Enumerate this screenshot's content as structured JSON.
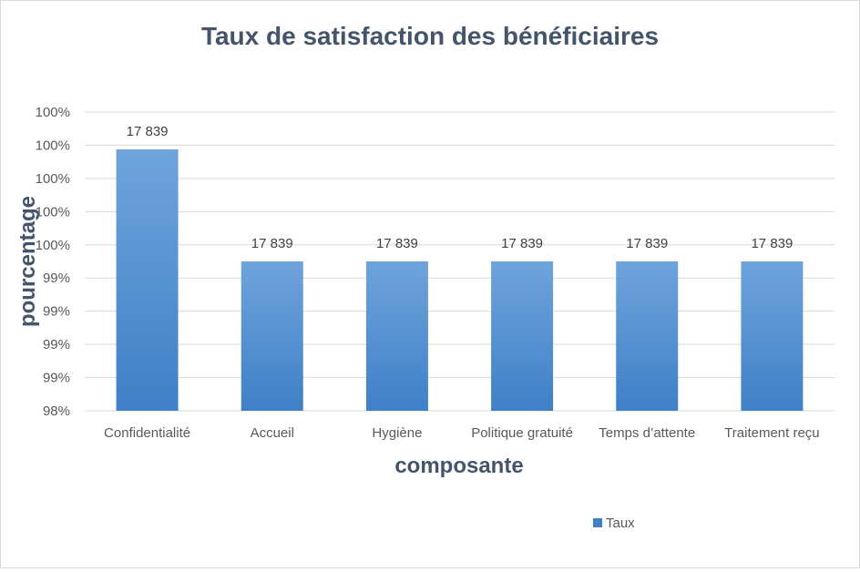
{
  "chart_data": {
    "type": "bar",
    "title": "Taux de satisfaction des bénéficiaires",
    "xlabel": "composante",
    "ylabel": "pourcentage",
    "categories": [
      "Confidentialité",
      "Accueil",
      "Hygiène",
      "Politique gratuité",
      "Temps d’attente",
      "Traitement reçu"
    ],
    "series": [
      {
        "name": "Taux",
        "values": [
          0.9975,
          0.99,
          0.99,
          0.99,
          0.99,
          0.99
        ],
        "data_labels": [
          "17 839",
          "17 839",
          "17 839",
          "17 839",
          "17 839",
          "17 839"
        ]
      }
    ],
    "y_tick_labels": [
      "98%",
      "99%",
      "99%",
      "99%",
      "99%",
      "100%",
      "100%",
      "100%",
      "100%",
      "100%"
    ],
    "ylim": [
      0.98,
      1.0
    ],
    "grid": true,
    "legend_position": "bottom",
    "colors": {
      "bar_top": "#6fa3dc",
      "bar_bottom": "#3f80c7",
      "grid": "#d9d9d9"
    }
  }
}
